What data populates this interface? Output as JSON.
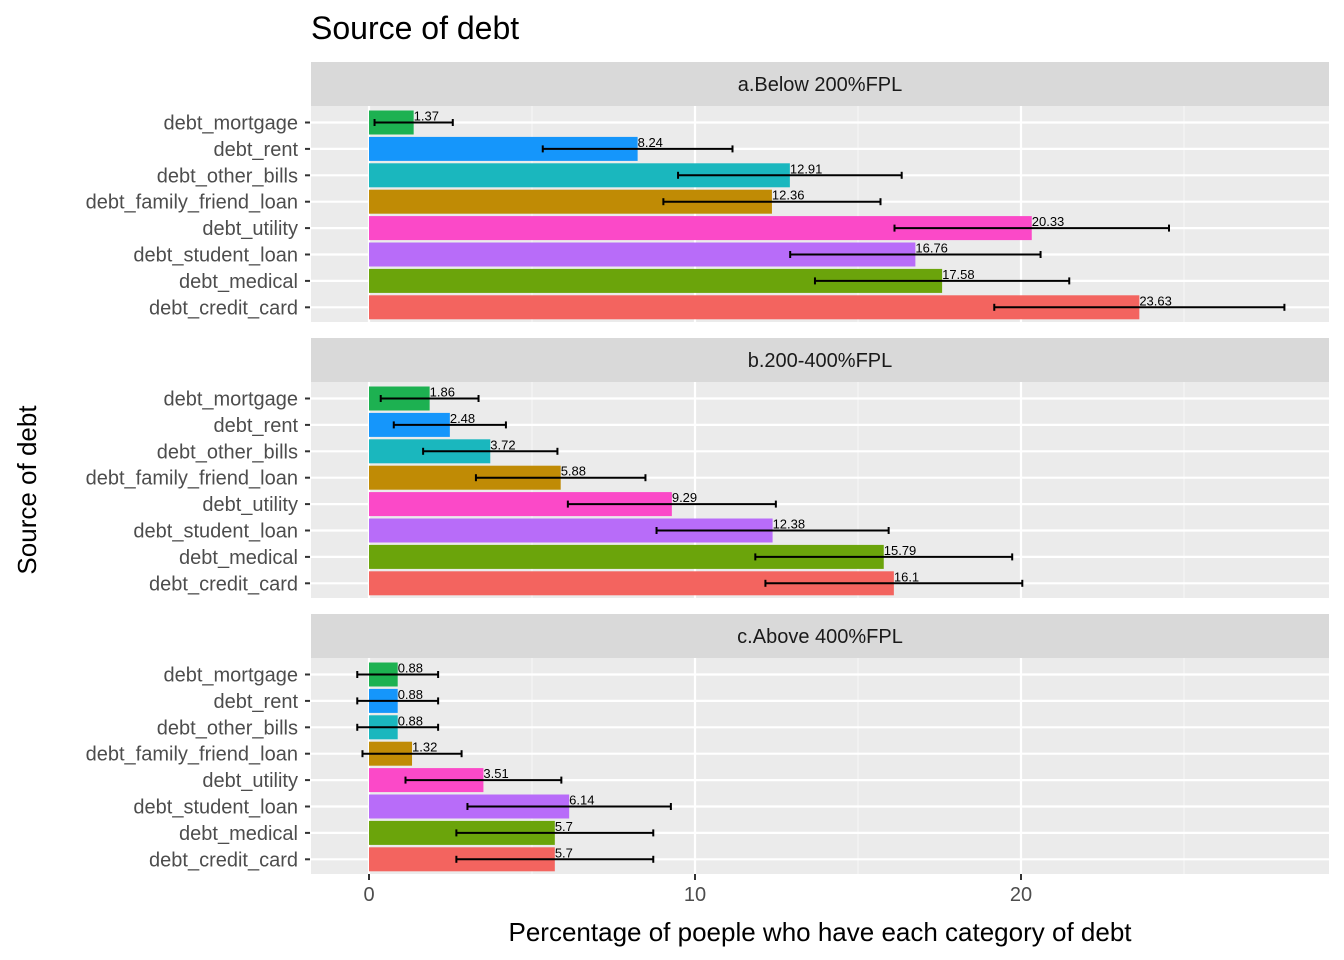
{
  "chart_data": {
    "type": "bar",
    "orientation": "horizontal",
    "title": "Source of debt",
    "xlabel": "Percentage of poeple who have each category of debt",
    "ylabel": "Source of debt",
    "xlim": [
      -1.75,
      29.5
    ],
    "x_ticks": [
      0,
      10,
      20
    ],
    "grid": true,
    "legend": "none",
    "categories": [
      "debt_mortgage",
      "debt_rent",
      "debt_other_bills",
      "debt_family_friend_loan",
      "debt_utility",
      "debt_student_loan",
      "debt_medical",
      "debt_credit_card"
    ],
    "category_colors": [
      "#1DB151",
      "#1596FB",
      "#1AB7BE",
      "#C08B05",
      "#FB49C8",
      "#B86CF9",
      "#6BA40B",
      "#F3645F"
    ],
    "panels": [
      {
        "name": "a.Below 200%FPL",
        "values": [
          1.37,
          8.24,
          12.91,
          12.36,
          20.33,
          16.76,
          17.58,
          23.63
        ],
        "value_labels": [
          "1.37",
          "8.24",
          "12.91",
          "12.36",
          "20.33",
          "16.76",
          "17.58",
          "23.63"
        ],
        "error_low": [
          0.17,
          5.33,
          9.48,
          9.03,
          16.12,
          12.92,
          13.68,
          19.18
        ],
        "error_high": [
          2.57,
          11.15,
          16.34,
          15.69,
          24.54,
          20.6,
          21.48,
          28.08
        ]
      },
      {
        "name": "b.200-400%FPL",
        "values": [
          1.86,
          2.48,
          3.72,
          5.88,
          9.29,
          12.38,
          15.79,
          16.1
        ],
        "value_labels": [
          "1.86",
          "2.48",
          "3.72",
          "5.88",
          "9.29",
          "12.38",
          "15.79",
          "16.1"
        ],
        "error_low": [
          0.36,
          0.76,
          1.66,
          3.28,
          6.1,
          8.82,
          11.85,
          12.16
        ],
        "error_high": [
          3.36,
          4.2,
          5.78,
          8.48,
          12.48,
          15.94,
          19.73,
          20.04
        ]
      },
      {
        "name": "c.Above 400%FPL",
        "values": [
          0.88,
          0.88,
          0.88,
          1.32,
          3.51,
          6.14,
          5.7,
          5.7
        ],
        "value_labels": [
          "0.88",
          "0.88",
          "0.88",
          "1.32",
          "3.51",
          "6.14",
          "5.7",
          "5.7"
        ],
        "error_low": [
          -0.36,
          -0.36,
          -0.36,
          -0.2,
          1.12,
          3.02,
          2.68,
          2.68
        ],
        "error_high": [
          2.12,
          2.12,
          2.12,
          2.84,
          5.9,
          9.26,
          8.72,
          8.72
        ]
      }
    ]
  }
}
